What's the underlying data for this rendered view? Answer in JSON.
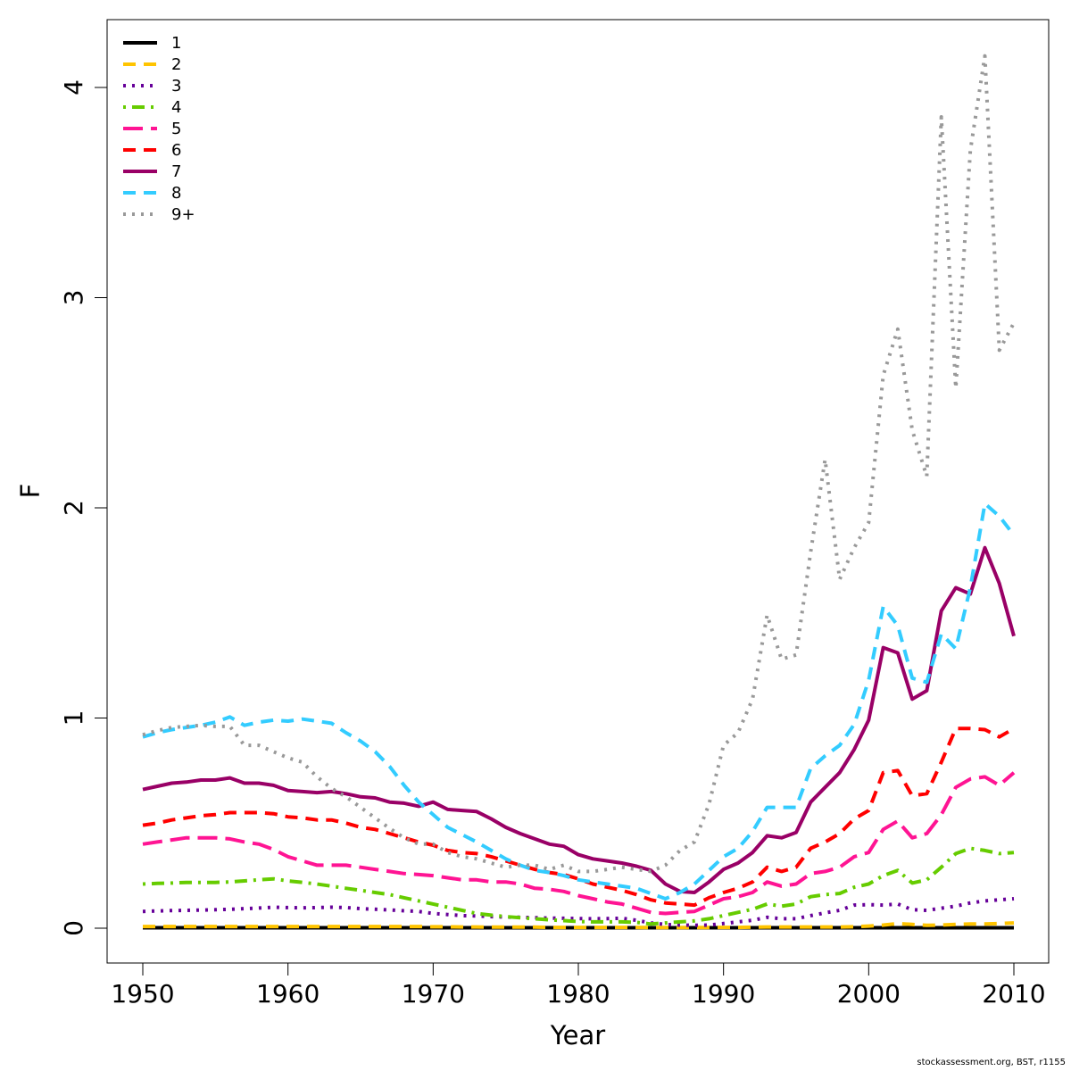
{
  "credit": "stockassessment.org, BST, r1155",
  "chart_data": {
    "type": "line",
    "title": "",
    "xlabel": "Year",
    "ylabel": "F",
    "xlim": [
      1950,
      2010
    ],
    "ylim": [
      0,
      4.2
    ],
    "x_ticks": [
      1950,
      1960,
      1970,
      1980,
      1990,
      2000,
      2010
    ],
    "y_ticks": [
      0,
      1,
      2,
      3,
      4
    ],
    "legend_position": "top-left",
    "grid": false,
    "years": [
      1950,
      1951,
      1952,
      1953,
      1954,
      1955,
      1956,
      1957,
      1958,
      1959,
      1960,
      1961,
      1962,
      1963,
      1964,
      1965,
      1966,
      1967,
      1968,
      1969,
      1970,
      1971,
      1972,
      1973,
      1974,
      1975,
      1976,
      1977,
      1978,
      1979,
      1980,
      1981,
      1982,
      1983,
      1984,
      1985,
      1986,
      1987,
      1988,
      1989,
      1990,
      1991,
      1992,
      1993,
      1994,
      1995,
      1996,
      1997,
      1998,
      1999,
      2000,
      2001,
      2002,
      2003,
      2004,
      2005,
      2006,
      2007,
      2008,
      2009,
      2010
    ],
    "series": [
      {
        "name": "1",
        "color": "#000000",
        "dash": "solid",
        "values": [
          0.002,
          0.002,
          0.002,
          0.002,
          0.002,
          0.002,
          0.002,
          0.002,
          0.002,
          0.002,
          0.002,
          0.002,
          0.002,
          0.002,
          0.002,
          0.002,
          0.002,
          0.002,
          0.002,
          0.002,
          0.002,
          0.002,
          0.002,
          0.002,
          0.002,
          0.002,
          0.002,
          0.002,
          0.002,
          0.002,
          0.002,
          0.002,
          0.002,
          0.002,
          0.002,
          0.002,
          0.002,
          0.002,
          0.002,
          0.002,
          0.002,
          0.002,
          0.002,
          0.002,
          0.002,
          0.002,
          0.002,
          0.002,
          0.002,
          0.002,
          0.002,
          0.002,
          0.002,
          0.002,
          0.002,
          0.002,
          0.002,
          0.002,
          0.002,
          0.002,
          0.002
        ]
      },
      {
        "name": "2",
        "color": "#FFC400",
        "dash": "dashed",
        "values": [
          0.008,
          0.008,
          0.008,
          0.008,
          0.008,
          0.008,
          0.008,
          0.008,
          0.008,
          0.008,
          0.008,
          0.008,
          0.008,
          0.008,
          0.008,
          0.008,
          0.008,
          0.008,
          0.008,
          0.008,
          0.007,
          0.007,
          0.006,
          0.006,
          0.005,
          0.005,
          0.005,
          0.005,
          0.004,
          0.004,
          0.004,
          0.004,
          0.004,
          0.004,
          0.004,
          0.003,
          0.003,
          0.003,
          0.003,
          0.003,
          0.004,
          0.004,
          0.005,
          0.006,
          0.006,
          0.006,
          0.006,
          0.006,
          0.006,
          0.007,
          0.01,
          0.015,
          0.022,
          0.018,
          0.014,
          0.015,
          0.018,
          0.02,
          0.02,
          0.022,
          0.025
        ]
      },
      {
        "name": "3",
        "color": "#660099",
        "dash": "dotted",
        "values": [
          0.08,
          0.082,
          0.084,
          0.085,
          0.086,
          0.088,
          0.09,
          0.093,
          0.096,
          0.1,
          0.098,
          0.097,
          0.098,
          0.1,
          0.098,
          0.093,
          0.09,
          0.087,
          0.083,
          0.08,
          0.07,
          0.065,
          0.06,
          0.058,
          0.055,
          0.053,
          0.052,
          0.05,
          0.048,
          0.047,
          0.046,
          0.045,
          0.046,
          0.047,
          0.038,
          0.025,
          0.018,
          0.015,
          0.014,
          0.015,
          0.022,
          0.03,
          0.038,
          0.052,
          0.045,
          0.045,
          0.06,
          0.073,
          0.085,
          0.11,
          0.112,
          0.11,
          0.115,
          0.088,
          0.085,
          0.095,
          0.105,
          0.12,
          0.13,
          0.135,
          0.14
        ]
      },
      {
        "name": "4",
        "color": "#66CC00",
        "dash": "dotdash",
        "values": [
          0.21,
          0.213,
          0.215,
          0.218,
          0.218,
          0.218,
          0.22,
          0.225,
          0.23,
          0.235,
          0.225,
          0.218,
          0.21,
          0.2,
          0.19,
          0.18,
          0.17,
          0.16,
          0.145,
          0.13,
          0.115,
          0.1,
          0.085,
          0.07,
          0.062,
          0.055,
          0.05,
          0.045,
          0.04,
          0.036,
          0.032,
          0.03,
          0.03,
          0.03,
          0.028,
          0.02,
          0.025,
          0.03,
          0.035,
          0.045,
          0.06,
          0.075,
          0.09,
          0.115,
          0.105,
          0.115,
          0.15,
          0.16,
          0.165,
          0.195,
          0.21,
          0.25,
          0.275,
          0.215,
          0.23,
          0.29,
          0.355,
          0.38,
          0.37,
          0.355,
          0.36
        ]
      },
      {
        "name": "5",
        "color": "#FF1493",
        "dash": "longdash",
        "values": [
          0.4,
          0.41,
          0.42,
          0.43,
          0.43,
          0.43,
          0.425,
          0.41,
          0.4,
          0.375,
          0.34,
          0.32,
          0.3,
          0.3,
          0.3,
          0.29,
          0.28,
          0.27,
          0.26,
          0.255,
          0.25,
          0.24,
          0.23,
          0.23,
          0.22,
          0.22,
          0.21,
          0.19,
          0.185,
          0.175,
          0.155,
          0.14,
          0.125,
          0.115,
          0.095,
          0.075,
          0.07,
          0.075,
          0.08,
          0.11,
          0.14,
          0.15,
          0.17,
          0.22,
          0.2,
          0.21,
          0.26,
          0.27,
          0.29,
          0.34,
          0.36,
          0.47,
          0.51,
          0.43,
          0.45,
          0.54,
          0.67,
          0.71,
          0.72,
          0.68,
          0.74
        ]
      },
      {
        "name": "6",
        "color": "#FF0000",
        "dash": "dashed",
        "values": [
          0.49,
          0.5,
          0.515,
          0.525,
          0.535,
          0.54,
          0.55,
          0.55,
          0.55,
          0.545,
          0.53,
          0.525,
          0.515,
          0.515,
          0.5,
          0.48,
          0.47,
          0.45,
          0.43,
          0.41,
          0.395,
          0.37,
          0.36,
          0.355,
          0.34,
          0.32,
          0.3,
          0.28,
          0.265,
          0.255,
          0.235,
          0.21,
          0.195,
          0.18,
          0.16,
          0.135,
          0.12,
          0.115,
          0.11,
          0.145,
          0.17,
          0.19,
          0.22,
          0.29,
          0.27,
          0.29,
          0.38,
          0.41,
          0.45,
          0.52,
          0.56,
          0.74,
          0.75,
          0.63,
          0.64,
          0.79,
          0.95,
          0.95,
          0.945,
          0.91,
          0.95
        ]
      },
      {
        "name": "7",
        "color": "#990066",
        "dash": "solid",
        "values": [
          0.66,
          0.675,
          0.69,
          0.695,
          0.705,
          0.705,
          0.715,
          0.69,
          0.69,
          0.68,
          0.655,
          0.65,
          0.645,
          0.65,
          0.64,
          0.625,
          0.62,
          0.6,
          0.595,
          0.58,
          0.6,
          0.565,
          0.56,
          0.555,
          0.52,
          0.48,
          0.45,
          0.425,
          0.4,
          0.39,
          0.35,
          0.33,
          0.32,
          0.31,
          0.295,
          0.275,
          0.21,
          0.175,
          0.17,
          0.22,
          0.28,
          0.31,
          0.36,
          0.44,
          0.43,
          0.455,
          0.6,
          0.67,
          0.74,
          0.85,
          0.99,
          1.335,
          1.31,
          1.09,
          1.13,
          1.51,
          1.62,
          1.59,
          1.81,
          1.64,
          1.39
        ]
      },
      {
        "name": "8",
        "color": "#33CCFF",
        "dash": "dashed",
        "values": [
          0.91,
          0.93,
          0.945,
          0.955,
          0.965,
          0.98,
          1.005,
          0.965,
          0.98,
          0.99,
          0.985,
          0.995,
          0.985,
          0.975,
          0.93,
          0.89,
          0.84,
          0.77,
          0.68,
          0.6,
          0.54,
          0.48,
          0.445,
          0.41,
          0.37,
          0.33,
          0.3,
          0.275,
          0.265,
          0.25,
          0.23,
          0.22,
          0.21,
          0.2,
          0.19,
          0.165,
          0.14,
          0.17,
          0.21,
          0.275,
          0.34,
          0.38,
          0.46,
          0.575,
          0.575,
          0.575,
          0.76,
          0.82,
          0.87,
          0.97,
          1.18,
          1.53,
          1.44,
          1.19,
          1.17,
          1.4,
          1.33,
          1.62,
          2.02,
          1.96,
          1.87
        ]
      },
      {
        "name": "9+",
        "color": "#999999",
        "dash": "dotted",
        "values": [
          0.92,
          0.94,
          0.955,
          0.96,
          0.965,
          0.96,
          0.96,
          0.87,
          0.87,
          0.84,
          0.81,
          0.79,
          0.72,
          0.665,
          0.625,
          0.575,
          0.525,
          0.475,
          0.43,
          0.4,
          0.4,
          0.36,
          0.34,
          0.33,
          0.31,
          0.29,
          0.3,
          0.3,
          0.28,
          0.3,
          0.27,
          0.27,
          0.28,
          0.29,
          0.28,
          0.27,
          0.3,
          0.37,
          0.41,
          0.59,
          0.87,
          0.93,
          1.09,
          1.49,
          1.28,
          1.3,
          1.79,
          2.23,
          1.66,
          1.81,
          1.93,
          2.63,
          2.85,
          2.37,
          2.15,
          3.86,
          2.57,
          3.7,
          4.15,
          2.75,
          2.88
        ]
      }
    ]
  }
}
